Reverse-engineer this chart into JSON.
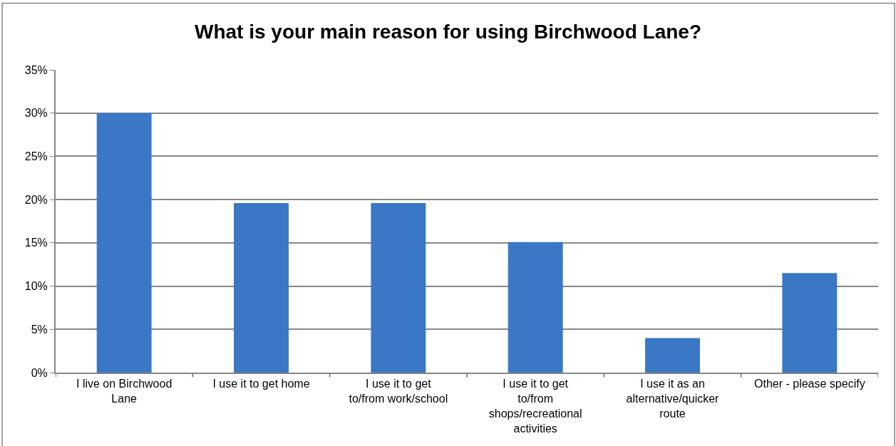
{
  "chart_data": {
    "type": "bar",
    "title": "What is your main reason for using Birchwood Lane?",
    "categories": [
      "I live on Birchwood Lane",
      "I use it to get home",
      "I use it to get to/from work/school",
      "I use it to get to/from shops/recreational activities",
      "I use it as an alternative/quicker route",
      "Other - please specify"
    ],
    "values": [
      30,
      19.6,
      19.6,
      15.1,
      4.0,
      11.5
    ],
    "color": "#3a78c6",
    "ylim": [
      0,
      35
    ],
    "yticks": [
      {
        "value": 0,
        "label": "0%"
      },
      {
        "value": 5,
        "label": "5%"
      },
      {
        "value": 10,
        "label": "10%"
      },
      {
        "value": 15,
        "label": "15%"
      },
      {
        "value": 20,
        "label": "20%"
      },
      {
        "value": 25,
        "label": "25%"
      },
      {
        "value": 30,
        "label": "30%"
      },
      {
        "value": 35,
        "label": "35%"
      }
    ],
    "grid": "y",
    "legend": false
  }
}
